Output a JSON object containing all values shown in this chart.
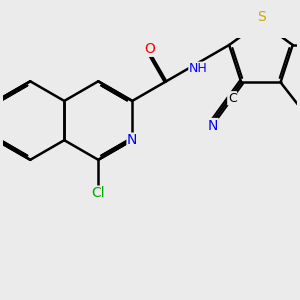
{
  "background_color": "#ebebeb",
  "atom_colors": {
    "N": "#0000ff",
    "O": "#ff0000",
    "S": "#ccaa00",
    "Cl": "#00aa00"
  },
  "bond_color": "#000000",
  "bond_width": 1.8,
  "dbo": 0.055,
  "font_size": 10,
  "fig_size": [
    3.0,
    3.0
  ],
  "dpi": 100,
  "xlim": [
    -2.5,
    5.0
  ],
  "ylim": [
    -3.2,
    2.5
  ]
}
